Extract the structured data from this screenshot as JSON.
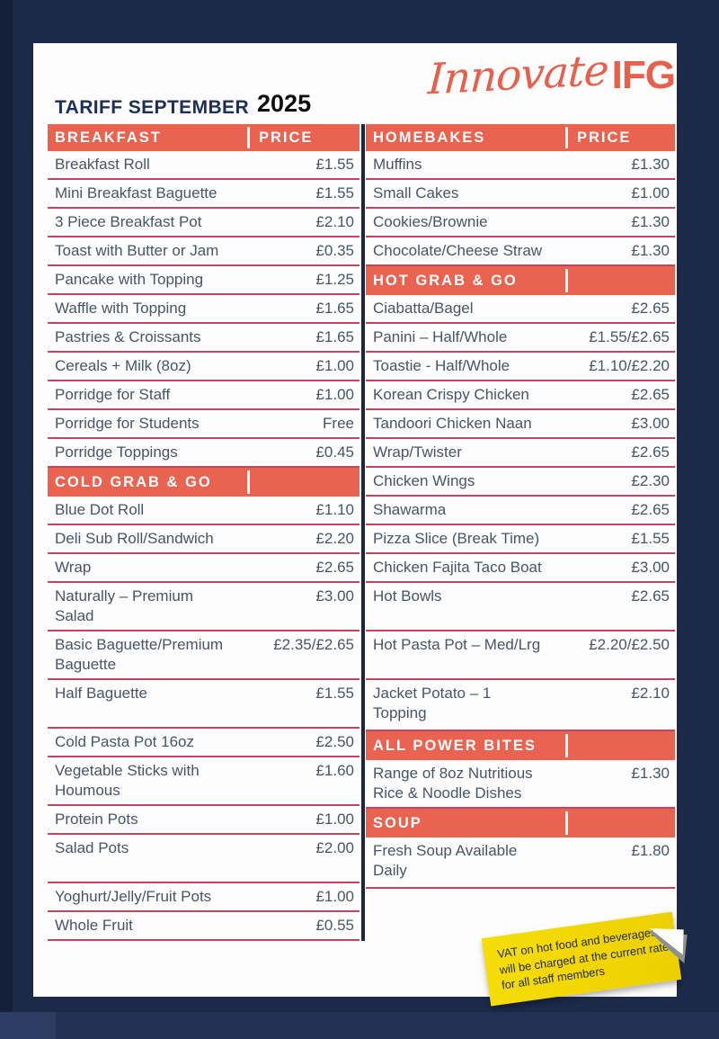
{
  "header": {
    "title": "TARIFF SEPTEMBER",
    "year": "2025",
    "logo_script": "Innovate",
    "logo_bold": "IFG"
  },
  "colors": {
    "background_navy": "#1c2a4a",
    "band_coral": "#ea6350",
    "row_line_crimson": "#c24563",
    "item_text": "#485468",
    "title_navy": "#1c2f58",
    "logo_coral": "#e7604b",
    "note_yellow": "#f2d500"
  },
  "columns": [
    {
      "sections": [
        {
          "header": "BREAKFAST",
          "price_label": "PRICE",
          "items": [
            {
              "label": "Breakfast Roll",
              "price": "£1.55"
            },
            {
              "label": "Mini Breakfast Baguette",
              "price": "£1.55"
            },
            {
              "label": "3 Piece Breakfast Pot",
              "price": "£2.10"
            },
            {
              "label": "Toast with Butter or Jam",
              "price": "£0.35"
            },
            {
              "label": "Pancake with Topping",
              "price": "£1.25"
            },
            {
              "label": "Waffle with Topping",
              "price": "£1.65"
            },
            {
              "label": "Pastries & Croissants",
              "price": "£1.65"
            },
            {
              "label": "Cereals + Milk (8oz)",
              "price": "£1.00"
            },
            {
              "label": "Porridge for Staff",
              "price": "£1.00"
            },
            {
              "label": "Porridge for Students",
              "price": "Free"
            },
            {
              "label": "Porridge Toppings",
              "price": "£0.45"
            }
          ]
        },
        {
          "header": "COLD GRAB & GO",
          "price_label": "",
          "items": [
            {
              "label": "Blue Dot Roll",
              "price": "£1.10"
            },
            {
              "label": "Deli Sub Roll/Sandwich",
              "price": "£2.20"
            },
            {
              "label": "Wrap",
              "price": "£2.65"
            },
            {
              "label": "Naturally – Premium\nSalad",
              "price": "£3.00",
              "size": "tall"
            },
            {
              "label": "Basic Baguette/Premium\nBaguette",
              "price": "£2.35/£2.65",
              "size": "tall"
            },
            {
              "label": "Half Baguette",
              "price": "£1.55",
              "size": "tall"
            },
            {
              "label": "Cold Pasta Pot 16oz",
              "price": "£2.50"
            },
            {
              "label": "Vegetable Sticks with\nHoumous",
              "price": "£1.60",
              "size": "tall"
            },
            {
              "label": "Protein Pots",
              "price": "£1.00"
            },
            {
              "label": "Salad Pots",
              "price": "£2.00",
              "size": "tall"
            },
            {
              "label": "Yoghurt/Jelly/Fruit Pots",
              "price": "£1.00"
            },
            {
              "label": "Whole Fruit",
              "price": "£0.55"
            }
          ]
        }
      ]
    },
    {
      "sections": [
        {
          "header": "HOMEBAKES",
          "price_label": "PRICE",
          "items": [
            {
              "label": "Muffins",
              "price": "£1.30"
            },
            {
              "label": "Small Cakes",
              "price": "£1.00"
            },
            {
              "label": "Cookies/Brownie",
              "price": "£1.30"
            },
            {
              "label": "Chocolate/Cheese Straw",
              "price": "£1.30"
            }
          ]
        },
        {
          "header": "HOT GRAB & GO",
          "price_label": "",
          "items": [
            {
              "label": "Ciabatta/Bagel",
              "price": "£2.65"
            },
            {
              "label": "Panini – Half/Whole",
              "price": "£1.55/£2.65"
            },
            {
              "label": "Toastie - Half/Whole",
              "price": "£1.10/£2.20"
            },
            {
              "label": "Korean Crispy Chicken",
              "price": "£2.65"
            },
            {
              "label": "Tandoori Chicken Naan",
              "price": "£3.00"
            },
            {
              "label": "Wrap/Twister",
              "price": "£2.65"
            },
            {
              "label": "Chicken Wings",
              "price": "£2.30"
            },
            {
              "label": "Shawarma",
              "price": "£2.65"
            },
            {
              "label": "Pizza Slice (Break Time)",
              "price": "£1.55"
            },
            {
              "label": "Chicken Fajita Taco Boat",
              "price": "£3.00"
            },
            {
              "label": "Hot Bowls",
              "price": "£2.65",
              "size": "tall"
            },
            {
              "label": "Hot Pasta Pot – Med/Lrg",
              "price": "£2.20/£2.50",
              "size": "tall"
            },
            {
              "label": "Jacket Potato – 1\nTopping",
              "price": "£2.10",
              "size": "xtall"
            }
          ]
        },
        {
          "header": "ALL POWER BITES",
          "price_label": "",
          "items": [
            {
              "label": "Range of 8oz Nutritious\nRice & Noodle Dishes",
              "price": "£1.30",
              "size": "tall"
            }
          ]
        },
        {
          "header": "SOUP",
          "price_label": "",
          "items": [
            {
              "label": "Fresh Soup Available\nDaily",
              "price": "£1.80",
              "size": "xtall"
            }
          ]
        }
      ]
    }
  ],
  "note": {
    "lines": [
      "VAT on hot food and beverages",
      "will be charged at the current rate",
      "for all staff members"
    ]
  }
}
